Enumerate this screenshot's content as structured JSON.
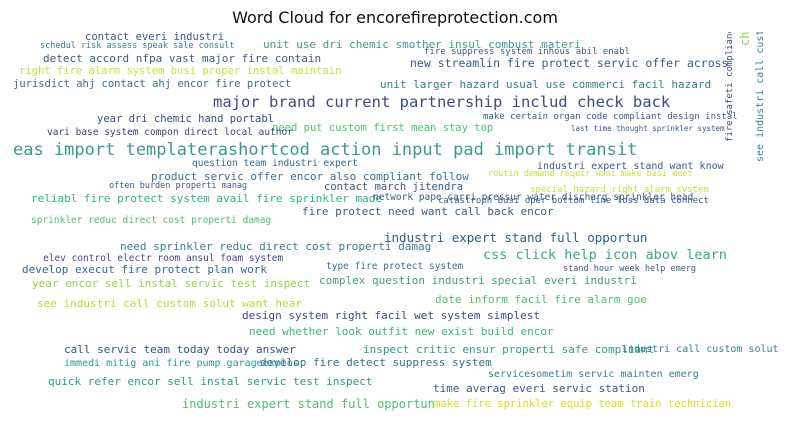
{
  "title": "Word Cloud for encorefireprotection.com",
  "words": [
    {
      "text": "eas import templaterashortcod action input pad import transit",
      "color": "#3b9a8f"
    },
    {
      "text": "major brand current partnership includ check back",
      "color": "#3d4a86"
    },
    {
      "text": "css click help icon abov learn",
      "color": "#3ea585"
    },
    {
      "text": "new streamlin fire protect servic offer across",
      "color": "#3a5a8c"
    },
    {
      "text": "unit use dri chemic smother insul combust materi",
      "color": "#3f9a8a"
    },
    {
      "text": "detect accord nfpa vast major fire contain",
      "color": "#3a5b8d"
    },
    {
      "text": "unit larger hazard usual use commerci facil hazard",
      "color": "#3a7d8e"
    },
    {
      "text": "right fire alarm system busi proper instal maintain",
      "color": "#c9df3a"
    },
    {
      "text": "jurisdict ahj contact ahj encor fire protect",
      "color": "#3d6e8e"
    },
    {
      "text": "industri expert stand full opportun",
      "color": "#2f5e8e"
    },
    {
      "text": "industri expert stand full opportun",
      "color": "#52bd6b"
    },
    {
      "text": "product servic offer encor also compliant follow",
      "color": "#3b6f8e"
    },
    {
      "text": "fire protect need want call back encor",
      "color": "#3a5a8c"
    },
    {
      "text": "need sprinkler reduc direct cost properti damag",
      "color": "#3a7d8e"
    },
    {
      "text": "develop execut fire protect plan work",
      "color": "#2f6c8e"
    },
    {
      "text": "year encor sell instal servic test inspect",
      "color": "#8dd645"
    },
    {
      "text": "see industri call custom solut want hear",
      "color": "#b5de2b"
    },
    {
      "text": "design system right facil wet system simplest",
      "color": "#3d4a86"
    },
    {
      "text": "need whether look outfit new exist build encor",
      "color": "#35b779"
    },
    {
      "text": "call servic team today today answer",
      "color": "#3e4d88"
    },
    {
      "text": "develop fire detect suppress system",
      "color": "#3b6f8e"
    },
    {
      "text": "inspect critic ensur properti safe compliant",
      "color": "#2e9b8b"
    },
    {
      "text": "quick refer encor sell instal servic test inspect",
      "color": "#2a9b8a"
    },
    {
      "text": "time averag everi servic station",
      "color": "#3a5a8c"
    },
    {
      "text": "make fire sprinkler equip team train technician",
      "color": "#d8e219"
    },
    {
      "text": "date inform facil fire alarm goe",
      "color": "#4cc26c"
    },
    {
      "text": "complex question industri special everi industri",
      "color": "#3e9e88"
    },
    {
      "text": "type fire protect system",
      "color": "#3a6f8e"
    },
    {
      "text": "elev control electr room ansul foam system",
      "color": "#3e4d88"
    },
    {
      "text": "reliabl fire protect system avail fire sprinkler made",
      "color": "#2fb47c"
    },
    {
      "text": "sprinkler reduc direct cost properti damag",
      "color": "#4cc26c"
    },
    {
      "text": "contact march jitendra",
      "color": "#3a5a8c"
    },
    {
      "text": "question team industri expert",
      "color": "#2f6c8e"
    },
    {
      "text": "need put custom first mean stay top",
      "color": "#4cc26c"
    },
    {
      "text": "year dri chemic hand portabl",
      "color": "#3d4a86"
    },
    {
      "text": "vari base system compon direct local author",
      "color": "#3a3f7d"
    },
    {
      "text": "contact everi industri",
      "color": "#3a5a8c"
    },
    {
      "text": "industri expert stand want know",
      "color": "#3a5a8c"
    },
    {
      "text": "network pape carri pressur water discharg sprinkler head",
      "color": "#3a5a8c"
    },
    {
      "text": "special hazard right alarm system",
      "color": "#c9df3a"
    },
    {
      "text": "catastroph busi oper bottom line loss data connect",
      "color": "#3a5a8c"
    },
    {
      "text": "make certain organ code compliant design instal",
      "color": "#3a5a8c"
    },
    {
      "text": "fire suppress system inhous abil enabl",
      "color": "#3a5a8c"
    },
    {
      "text": "schedul risk assess speak sale consult",
      "color": "#3a7d8e"
    },
    {
      "text": "immedi mitig ani fire pump garageexplos",
      "color": "#2a9b8a"
    },
    {
      "text": "industri call custom solut",
      "color": "#3a7d8e"
    },
    {
      "text": "challeng hazard area tradit water system would becaus",
      "color": "#8dd645"
    },
    {
      "text": "fire safeti complianc preserv expens equip valuabl",
      "color": "#3d4a86"
    },
    {
      "text": "see industri call custom",
      "color": "#3a7d8e"
    },
    {
      "text": "servicesometim servic mainten emerg",
      "color": "#3a7d8e"
    },
    {
      "text": "routin demand requir want make basi meet",
      "color": "#c9df3a"
    },
    {
      "text": "often burden properti manag",
      "color": "#3a5a8c"
    },
    {
      "text": "last time thought sprinkler system",
      "color": "#3a5a8c"
    },
    {
      "text": "stand hour week help emerg",
      "color": "#3a5a8c"
    }
  ]
}
